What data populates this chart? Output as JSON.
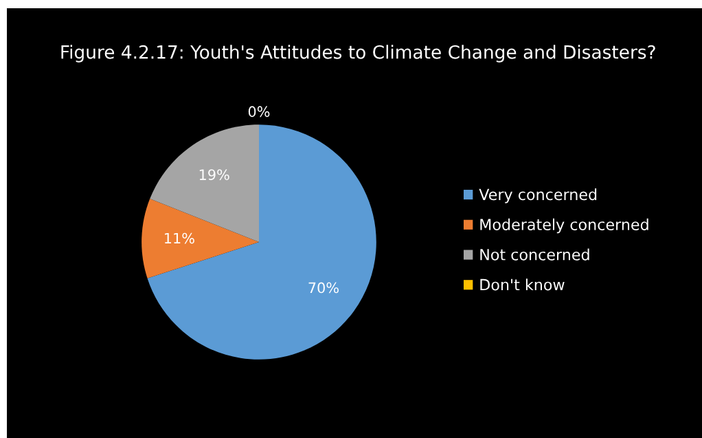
{
  "chart_data": {
    "type": "pie",
    "title": "Figure 4.2.17: Youth's Attitudes to Climate Change and Disasters?",
    "categories": [
      "Very concerned",
      "Moderately concerned",
      "Not concerned",
      "Don't know"
    ],
    "values": [
      70,
      11,
      19,
      0
    ],
    "colors": [
      "#5b9bd5",
      "#ed7d31",
      "#a5a5a5",
      "#ffc000"
    ],
    "value_labels": [
      "70%",
      "11%",
      "19%",
      "0%"
    ],
    "legend": "right"
  }
}
